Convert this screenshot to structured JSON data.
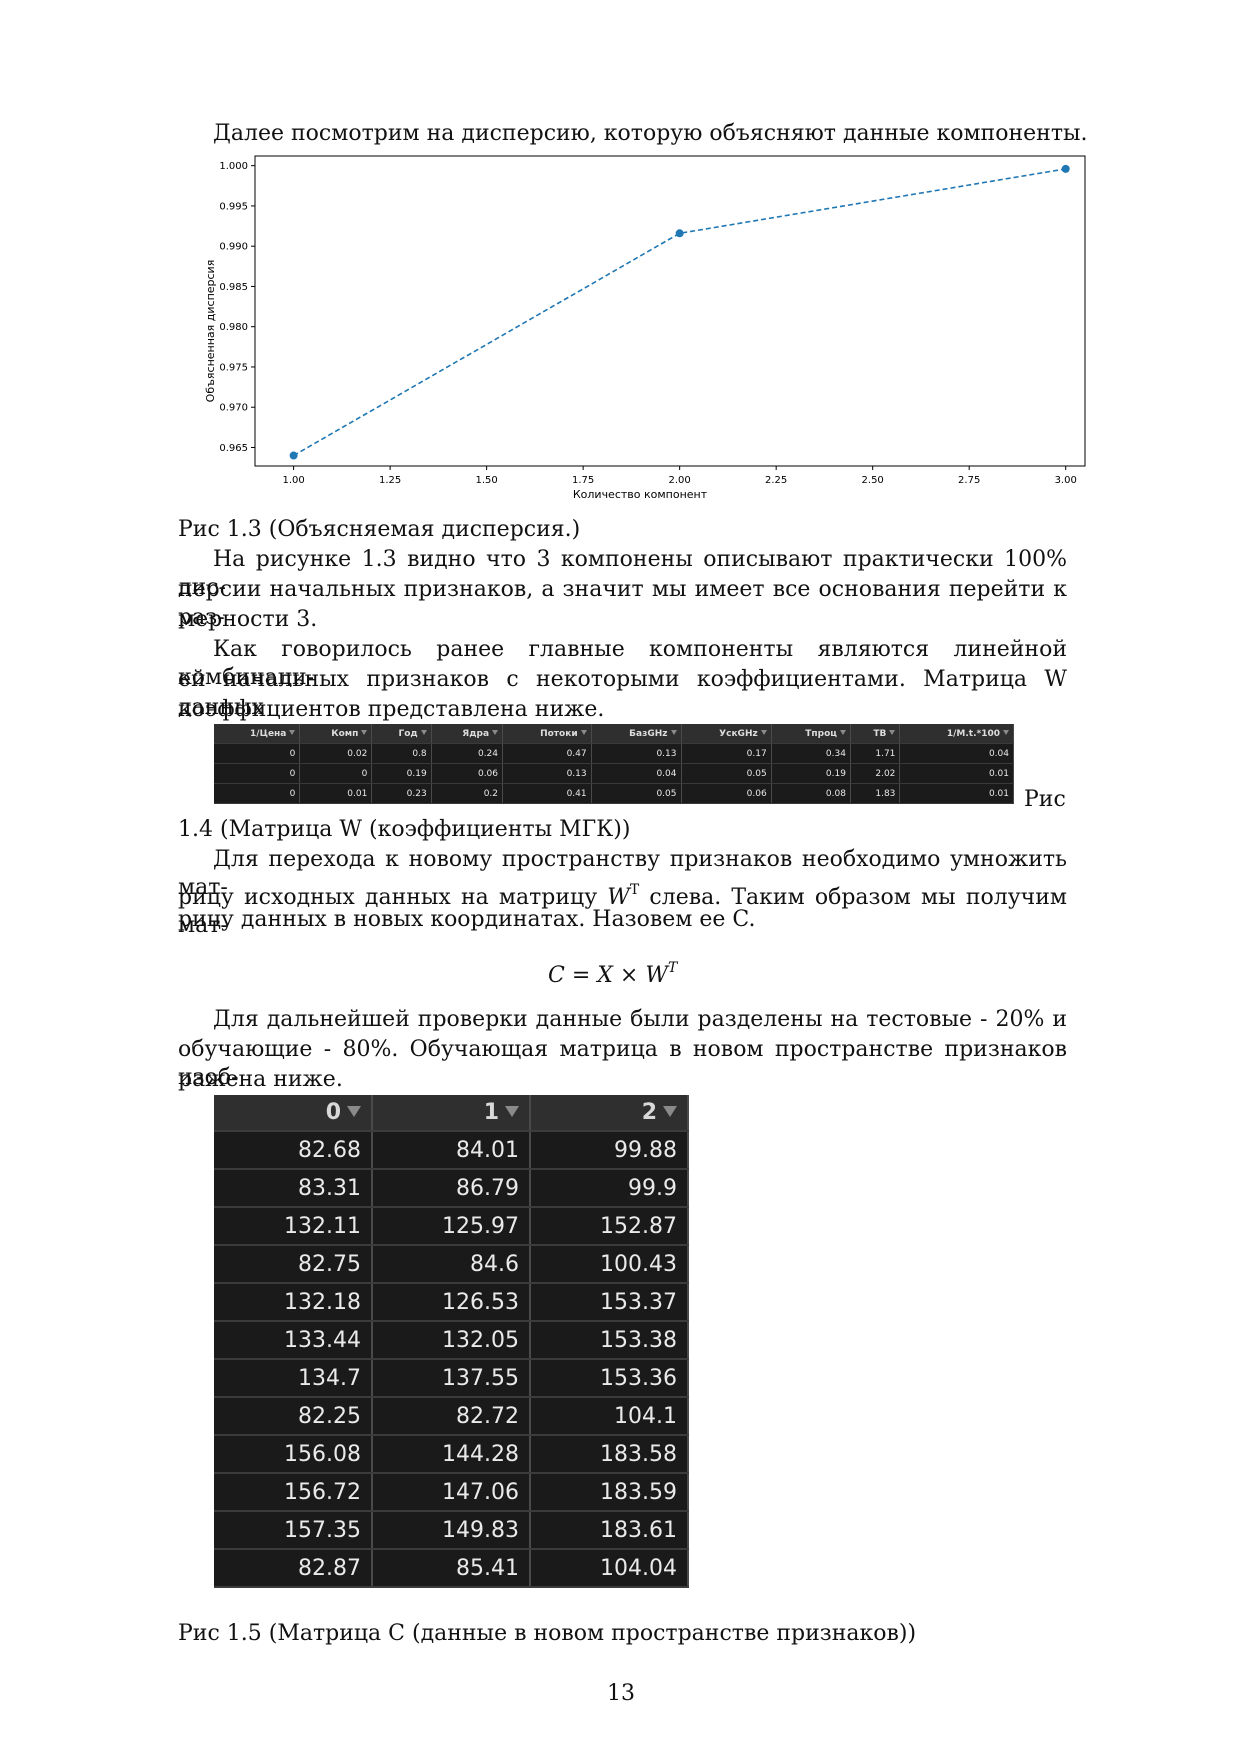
{
  "text": {
    "intro": "Далее посмотрим на дисперсию, которую объясняют данные компоненты.",
    "fig13_caption": "Рис 1.3 (Объясняемая дисперсия.)",
    "p1_l1": "На рисунке 1.3 видно что 3 компонены описывают практически 100% дис-",
    "p1_l2": "персии начальных признаков, а значит мы имеет все основания перейти к раз-",
    "p1_l3": "мерности 3.",
    "p2_l1": "Как говорилось ранее главные компоненты являются линейной комбинаци-",
    "p2_l2": "ей начальных признаков с некоторыми коэффициентами. Матрица W данных",
    "p2_l3": "коэффициентов представлена ниже.",
    "fig14_caption_a": "Рис",
    "fig14_caption_b": "1.4 (Матрица W (коэффициенты МГК))",
    "p3_l1_a": "Для перехода к новому пространству признаков необходимо умножить мат-",
    "p3_l2_a": "рицу исходных данных на матрицу ",
    "p3_l2_w": "W",
    "p3_l2_t": "T",
    "p3_l2_b": " слева. Таким образом мы получим мат-",
    "p3_l3": "рицу данных в новых координатах. Назовем ее C.",
    "formula_lhs": "C = X × W",
    "formula_sup": "T",
    "p4_l1": "Для дальнейшей проверки данные были разделены на тестовые - 20% и",
    "p4_l2": "обучающие - 80%. Обучающая матрица в новом пространстве признаков изоб-",
    "p4_l3": "ражена ниже.",
    "fig15_caption": "Рис 1.5 (Матрица C (данные в новом пространстве признаков))",
    "page_number": "13"
  },
  "chart_data": {
    "type": "line",
    "x": [
      1.0,
      2.0,
      3.0
    ],
    "series": [
      {
        "values": [
          0.964,
          0.9916,
          0.9996
        ]
      }
    ],
    "xlabel": "Количество компонент",
    "ylabel": "Объясненная дисперсия",
    "xlim": [
      0.9,
      3.05
    ],
    "ylim": [
      0.9627,
      1.0012
    ],
    "xticks": [
      "1.00",
      "1.25",
      "1.50",
      "1.75",
      "2.00",
      "2.25",
      "2.50",
      "2.75",
      "3.00"
    ],
    "yticks": [
      "0.965",
      "0.970",
      "0.975",
      "0.980",
      "0.985",
      "0.990",
      "0.995",
      "1.000"
    ],
    "grid": false,
    "line_style": "dashed",
    "color": "#1f77b4"
  },
  "w_matrix": {
    "headers": [
      "1/Цена",
      "Комп",
      "Год",
      "Ядра",
      "Потоки",
      "БазGHz",
      "УскGHz",
      "Тпроц",
      "ТВ",
      "1/M.t.*100"
    ],
    "rows": [
      [
        "0",
        "0.02",
        "0.8",
        "0.24",
        "0.47",
        "0.13",
        "0.17",
        "0.34",
        "1.71",
        "0.04"
      ],
      [
        "0",
        "0",
        "0.19",
        "0.06",
        "0.13",
        "0.04",
        "0.05",
        "0.19",
        "2.02",
        "0.01"
      ],
      [
        "0",
        "0.01",
        "0.23",
        "0.2",
        "0.41",
        "0.05",
        "0.06",
        "0.08",
        "1.83",
        "0.01"
      ]
    ]
  },
  "c_matrix": {
    "headers": [
      "0",
      "1",
      "2"
    ],
    "rows": [
      [
        "82.68",
        "84.01",
        "99.88"
      ],
      [
        "83.31",
        "86.79",
        "99.9"
      ],
      [
        "132.11",
        "125.97",
        "152.87"
      ],
      [
        "82.75",
        "84.6",
        "100.43"
      ],
      [
        "132.18",
        "126.53",
        "153.37"
      ],
      [
        "133.44",
        "132.05",
        "153.38"
      ],
      [
        "134.7",
        "137.55",
        "153.36"
      ],
      [
        "82.25",
        "82.72",
        "104.1"
      ],
      [
        "156.08",
        "144.28",
        "183.58"
      ],
      [
        "156.72",
        "147.06",
        "183.59"
      ],
      [
        "157.35",
        "149.83",
        "183.61"
      ],
      [
        "82.87",
        "85.41",
        "104.04"
      ]
    ]
  }
}
